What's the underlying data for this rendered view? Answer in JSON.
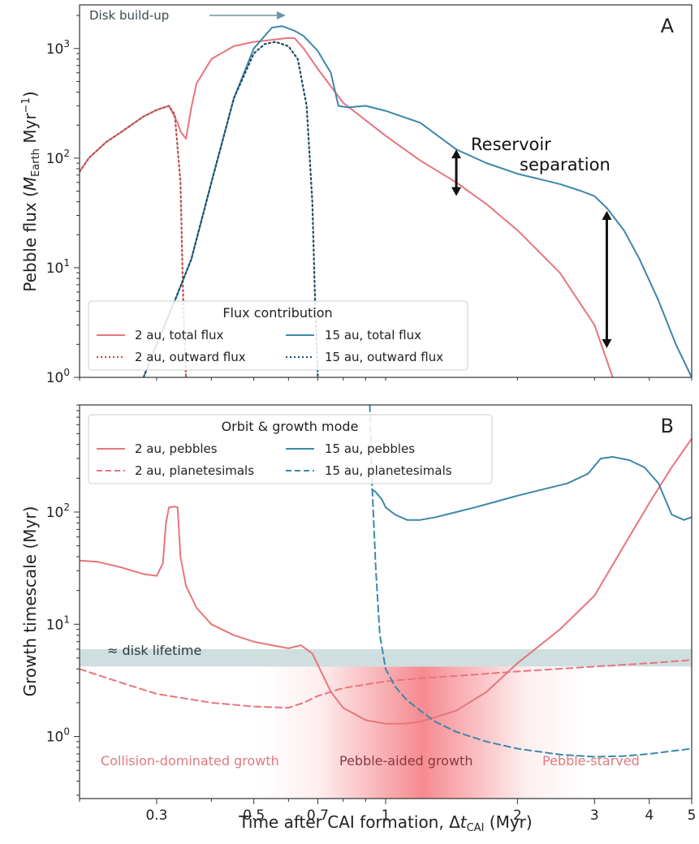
{
  "colors": {
    "red": "#e8757c",
    "blue": "#3d87ab",
    "red_out": "#b5534f",
    "blue_out": "#1f4e66",
    "band": "#cfdedf",
    "arrow_gray": "#6b96a4",
    "region_label": "#e0797d"
  },
  "chart_data": [
    {
      "type": "line",
      "panel": "A",
      "ylabel_main": "Pebble flux (",
      "ylabel_M": "M",
      "ylabel_sub": "Earth",
      "ylabel_unit": " Myr",
      "ylabel_exp": "−1",
      "ylabel_close": ")",
      "xlim": [
        0.2,
        5
      ],
      "ylim": [
        1,
        2500
      ],
      "xscale": "log",
      "yscale": "log",
      "y_ticks": [
        {
          "value": 1,
          "base": "10",
          "exp": "0"
        },
        {
          "value": 10,
          "base": "10",
          "exp": "1"
        },
        {
          "value": 100,
          "base": "10",
          "exp": "2"
        },
        {
          "value": 1000,
          "base": "10",
          "exp": "3"
        }
      ],
      "legend": {
        "title": "Flux contribution",
        "placement": "lower-left",
        "entries": [
          "2 au, total flux",
          "15 au, total flux",
          "2 au, outward flux",
          "15 au, outward flux"
        ]
      },
      "annotations": {
        "build_up": "Disk build-up",
        "reservoir_1": "Reservoir",
        "reservoir_2": "separation"
      },
      "arrows": [
        {
          "x": 1.45,
          "y_low": 45,
          "y_high": 120
        },
        {
          "x": 3.2,
          "y_low": 1.85,
          "y_high": 33
        }
      ],
      "series": [
        {
          "name": "2 au, total flux",
          "style": "solid",
          "color": "red",
          "x": [
            0.2,
            0.21,
            0.23,
            0.25,
            0.28,
            0.3,
            0.32,
            0.335,
            0.34,
            0.35,
            0.36,
            0.37,
            0.4,
            0.45,
            0.5,
            0.55,
            0.6,
            0.62,
            0.65,
            0.7,
            0.8,
            1.0,
            1.2,
            1.45,
            1.7,
            2.0,
            2.5,
            3.0,
            3.3
          ],
          "y": [
            75,
            100,
            140,
            175,
            240,
            275,
            300,
            210,
            175,
            150,
            290,
            480,
            800,
            1050,
            1150,
            1200,
            1250,
            1240,
            1000,
            650,
            320,
            160,
            95,
            60,
            38,
            22,
            9,
            3,
            1
          ]
        },
        {
          "name": "2 au, outward flux",
          "style": "dotted",
          "color": "red_out",
          "x": [
            0.2,
            0.21,
            0.23,
            0.25,
            0.28,
            0.3,
            0.32,
            0.33,
            0.34,
            0.345,
            0.35
          ],
          "y": [
            75,
            100,
            140,
            175,
            240,
            275,
            300,
            250,
            60,
            5,
            1
          ]
        },
        {
          "name": "15 au, total flux",
          "style": "solid",
          "color": "blue",
          "x": [
            0.28,
            0.3,
            0.33,
            0.36,
            0.4,
            0.45,
            0.5,
            0.55,
            0.58,
            0.62,
            0.65,
            0.7,
            0.72,
            0.75,
            0.78,
            0.82,
            0.9,
            1.0,
            1.2,
            1.45,
            1.7,
            2.0,
            2.5,
            2.8,
            3.0,
            3.2,
            3.5,
            3.8,
            4.2,
            4.6,
            5.0
          ],
          "y": [
            1,
            2,
            5,
            12,
            60,
            350,
            1000,
            1550,
            1600,
            1450,
            1300,
            950,
            780,
            600,
            300,
            290,
            300,
            270,
            210,
            120,
            90,
            72,
            58,
            50,
            45,
            35,
            22,
            12,
            5,
            2,
            1
          ]
        },
        {
          "name": "15 au, outward flux",
          "style": "dotted",
          "color": "blue_out",
          "x": [
            0.28,
            0.3,
            0.33,
            0.36,
            0.4,
            0.45,
            0.5,
            0.53,
            0.56,
            0.6,
            0.63,
            0.66,
            0.68,
            0.69,
            0.7
          ],
          "y": [
            1,
            2,
            5,
            12,
            60,
            350,
            900,
            1100,
            1150,
            1050,
            800,
            300,
            40,
            5,
            1
          ]
        }
      ]
    },
    {
      "type": "line",
      "panel": "B",
      "xlabel_main": "Time after CAI formation, Δ",
      "xlabel_t": "t",
      "xlabel_sub": "CAI",
      "xlabel_unit": " (Myr)",
      "ylabel": "Growth timescale (Myr)",
      "xlim": [
        0.2,
        5
      ],
      "ylim": [
        0.28,
        900
      ],
      "xscale": "log",
      "yscale": "log",
      "x_ticks": [
        {
          "value": 0.3,
          "label": "0.3"
        },
        {
          "value": 0.5,
          "label": "0.5"
        },
        {
          "value": 0.7,
          "label": "0.7"
        },
        {
          "value": 1,
          "label": "1"
        },
        {
          "value": 2,
          "label": "2"
        },
        {
          "value": 3,
          "label": "3"
        },
        {
          "value": 4,
          "label": "4"
        },
        {
          "value": 5,
          "label": "5"
        }
      ],
      "y_ticks": [
        {
          "value": 1,
          "base": "10",
          "exp": "0"
        },
        {
          "value": 10,
          "base": "10",
          "exp": "1"
        },
        {
          "value": 100,
          "base": "10",
          "exp": "2"
        }
      ],
      "legend": {
        "title": "Orbit & growth mode",
        "placement": "upper-left",
        "entries": [
          "2 au, pebbles",
          "15 au, pebbles",
          "2 au, planetesimals",
          "15 au, planetesimals"
        ]
      },
      "band": {
        "label": "≈ disk lifetime",
        "y_low": 4.2,
        "y_high": 6.0
      },
      "regions": [
        "Collision-dominated growth",
        "Pebble-aided growth",
        "Pebble-starved"
      ],
      "series": [
        {
          "name": "2 au, pebbles",
          "style": "solid",
          "color": "red",
          "x": [
            0.2,
            0.22,
            0.25,
            0.28,
            0.3,
            0.31,
            0.315,
            0.32,
            0.33,
            0.335,
            0.34,
            0.35,
            0.37,
            0.4,
            0.45,
            0.5,
            0.55,
            0.6,
            0.64,
            0.68,
            0.75,
            0.8,
            0.9,
            1.0,
            1.1,
            1.2,
            1.45,
            1.7,
            2.0,
            2.5,
            3.0,
            3.5,
            4.0,
            4.5,
            5.0
          ],
          "y": [
            37,
            36,
            32,
            28,
            27,
            35,
            80,
            110,
            112,
            110,
            40,
            22,
            14,
            10,
            8,
            7,
            6.5,
            6.1,
            6.5,
            5.5,
            2.5,
            1.8,
            1.4,
            1.3,
            1.3,
            1.35,
            1.7,
            2.5,
            4.5,
            9,
            18,
            50,
            120,
            250,
            450
          ]
        },
        {
          "name": "2 au, planetesimals",
          "style": "dashed",
          "color": "red",
          "x": [
            0.2,
            0.25,
            0.3,
            0.4,
            0.5,
            0.6,
            0.65,
            0.7,
            0.8,
            1.0,
            1.2,
            1.5,
            2.0,
            3.0,
            4.0,
            5.0
          ],
          "y": [
            4,
            3,
            2.4,
            2.0,
            1.85,
            1.8,
            2.0,
            2.3,
            2.7,
            3.1,
            3.3,
            3.5,
            3.8,
            4.2,
            4.5,
            4.8
          ]
        },
        {
          "name": "15 au, pebbles",
          "style": "solid",
          "color": "blue",
          "x": [
            0.93,
            0.95,
            0.98,
            1.0,
            1.05,
            1.12,
            1.2,
            1.3,
            1.45,
            1.6,
            1.8,
            2.0,
            2.3,
            2.6,
            2.9,
            3.1,
            3.3,
            3.6,
            3.9,
            4.2,
            4.5,
            4.8,
            5.0
          ],
          "y": [
            160,
            150,
            130,
            110,
            95,
            85,
            85,
            90,
            100,
            110,
            125,
            140,
            160,
            180,
            220,
            300,
            310,
            290,
            250,
            180,
            95,
            85,
            90
          ]
        },
        {
          "name": "15 au, planetesimals",
          "style": "dashed",
          "color": "blue",
          "x": [
            0.92,
            0.93,
            0.95,
            0.97,
            1.0,
            1.05,
            1.12,
            1.2,
            1.3,
            1.45,
            1.7,
            2.0,
            2.5,
            3.0,
            3.5,
            4.0,
            5.0
          ],
          "y": [
            900,
            200,
            30,
            8,
            4,
            2.8,
            2.1,
            1.7,
            1.35,
            1.1,
            0.9,
            0.78,
            0.69,
            0.66,
            0.67,
            0.7,
            0.78
          ]
        }
      ]
    }
  ]
}
